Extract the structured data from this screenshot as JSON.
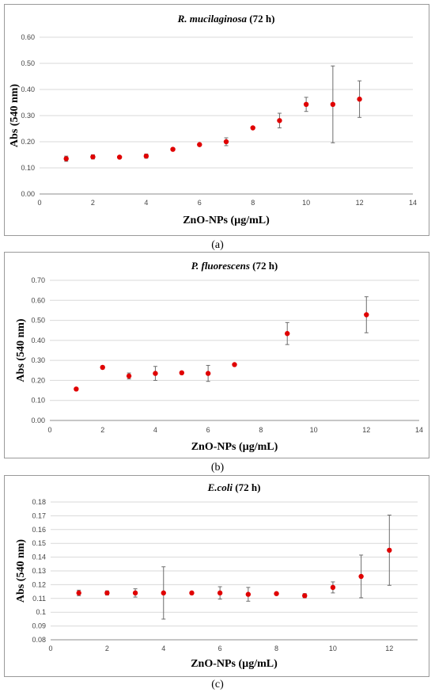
{
  "chart_data": [
    {
      "type": "scatter",
      "title_italic": "R. mucilaginosa",
      "title_rest": " (72 h)",
      "xlabel": "ZnO-NPs (µg/mL)",
      "ylabel": "Abs (540 nm)",
      "xlim": [
        0,
        14
      ],
      "ylim": [
        0,
        0.6
      ],
      "xticks": [
        "0",
        "2",
        "4",
        "6",
        "8",
        "10",
        "12",
        "14"
      ],
      "yticks": [
        "0.00",
        "0.10",
        "0.20",
        "0.30",
        "0.40",
        "0.50",
        "0.60"
      ],
      "grid": "horizontal",
      "caption": "(a)",
      "points": [
        {
          "x": 1,
          "y": 0.135,
          "err": 0.01
        },
        {
          "x": 2,
          "y": 0.142,
          "err": 0.008
        },
        {
          "x": 3,
          "y": 0.141,
          "err": 0.004
        },
        {
          "x": 4,
          "y": 0.145,
          "err": 0.008
        },
        {
          "x": 5,
          "y": 0.171,
          "err": 0.004
        },
        {
          "x": 6,
          "y": 0.189,
          "err": 0.004
        },
        {
          "x": 7,
          "y": 0.2,
          "err": 0.015
        },
        {
          "x": 8,
          "y": 0.253,
          "err": 0.004
        },
        {
          "x": 9,
          "y": 0.281,
          "err": 0.028
        },
        {
          "x": 10,
          "y": 0.343,
          "err": 0.027
        },
        {
          "x": 11,
          "y": 0.343,
          "err": 0.147
        },
        {
          "x": 12,
          "y": 0.363,
          "err": 0.07
        }
      ]
    },
    {
      "type": "scatter",
      "title_italic": "P. fluorescens",
      "title_rest": " (72 h)",
      "xlabel": "ZnO-NPs (µg/mL)",
      "ylabel": "Abs (540 nm)",
      "xlim": [
        0,
        14
      ],
      "ylim": [
        0,
        0.7
      ],
      "xticks": [
        "0",
        "2",
        "4",
        "6",
        "8",
        "10",
        "12",
        "14"
      ],
      "yticks": [
        "0.00",
        "0.10",
        "0.20",
        "0.30",
        "0.40",
        "0.50",
        "0.60",
        "0.70"
      ],
      "grid": "horizontal",
      "caption": "(b)",
      "points": [
        {
          "x": 1,
          "y": 0.157,
          "err": 0.005
        },
        {
          "x": 2,
          "y": 0.265,
          "err": 0.008
        },
        {
          "x": 3,
          "y": 0.222,
          "err": 0.015
        },
        {
          "x": 4,
          "y": 0.235,
          "err": 0.035
        },
        {
          "x": 5,
          "y": 0.238,
          "err": 0.005
        },
        {
          "x": 6,
          "y": 0.235,
          "err": 0.04
        },
        {
          "x": 7,
          "y": 0.279,
          "err": 0.005
        },
        {
          "x": 9,
          "y": 0.434,
          "err": 0.055
        },
        {
          "x": 12,
          "y": 0.528,
          "err": 0.09
        }
      ]
    },
    {
      "type": "scatter",
      "title_italic": "E.coli",
      "title_rest": " (72 h)",
      "xlabel": "ZnO-NPs (µg/mL)",
      "ylabel": "Abs (540 nm)",
      "xlim": [
        0,
        13
      ],
      "ylim": [
        0.08,
        0.18
      ],
      "xticks": [
        "0",
        "2",
        "4",
        "6",
        "8",
        "10",
        "12"
      ],
      "yticks": [
        "0.08",
        "0.09",
        "0.1",
        "0.11",
        "0.12",
        "0.13",
        "0.14",
        "0.15",
        "0.16",
        "0.17",
        "0.18"
      ],
      "grid": "horizontal",
      "caption": "(c)",
      "points": [
        {
          "x": 1,
          "y": 0.114,
          "err": 0.002
        },
        {
          "x": 2,
          "y": 0.114,
          "err": 0.0015
        },
        {
          "x": 3,
          "y": 0.114,
          "err": 0.003
        },
        {
          "x": 4,
          "y": 0.114,
          "err": 0.019
        },
        {
          "x": 5,
          "y": 0.114,
          "err": 0.0008
        },
        {
          "x": 6,
          "y": 0.114,
          "err": 0.0045
        },
        {
          "x": 7,
          "y": 0.113,
          "err": 0.005
        },
        {
          "x": 8,
          "y": 0.1135,
          "err": 0.0008
        },
        {
          "x": 9,
          "y": 0.112,
          "err": 0.0015
        },
        {
          "x": 10,
          "y": 0.118,
          "err": 0.004
        },
        {
          "x": 11,
          "y": 0.126,
          "err": 0.0155
        },
        {
          "x": 12,
          "y": 0.145,
          "err": 0.0255
        }
      ]
    }
  ],
  "colors": {
    "marker": "#e00000",
    "error_bar": "#6d6d6d",
    "grid": "#d9d9d9"
  }
}
